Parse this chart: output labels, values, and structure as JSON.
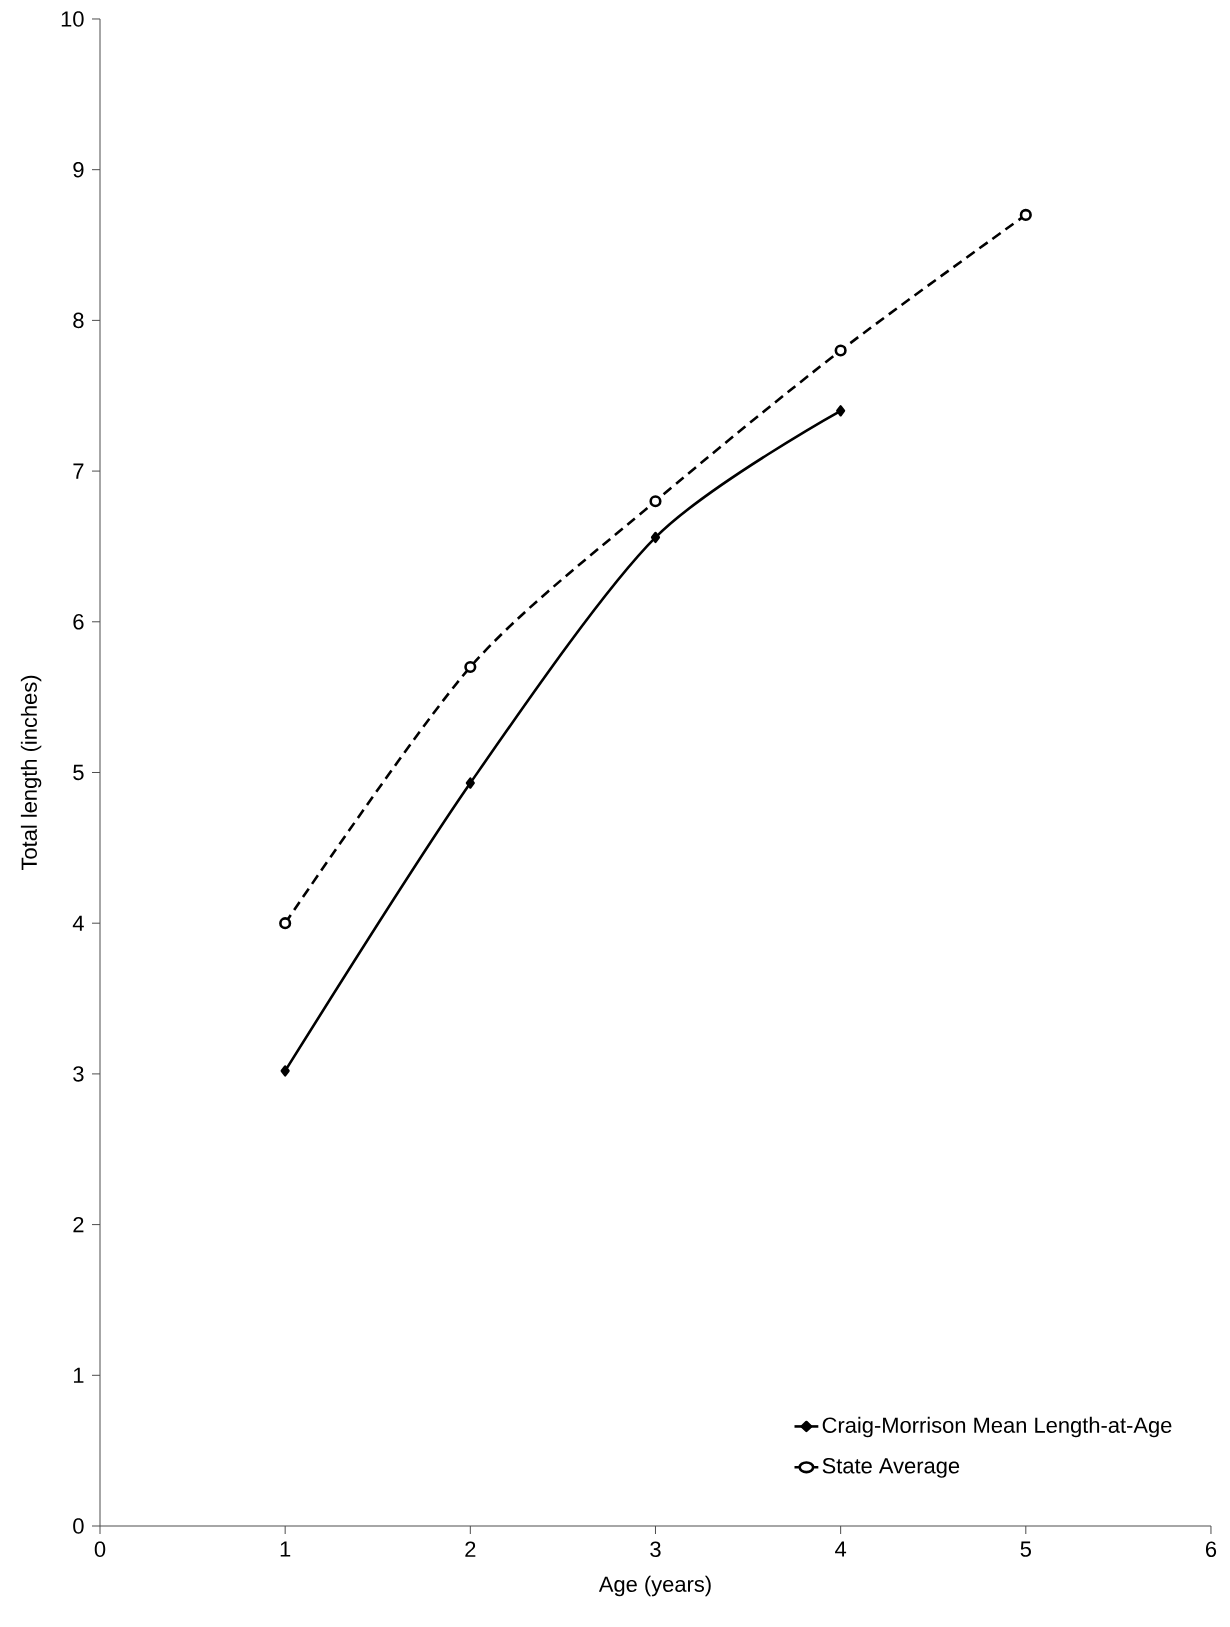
{
  "chart_data": {
    "type": "line",
    "xlabel": "Age (years)",
    "ylabel": "Total length (inches)",
    "xlim": [
      0,
      6
    ],
    "xticks": [
      0,
      1,
      2,
      3,
      4,
      5,
      6
    ],
    "ylim": [
      0,
      10
    ],
    "yticks": [
      0,
      1,
      2,
      3,
      4,
      5,
      6,
      7,
      8,
      9,
      10
    ],
    "grid": false,
    "legend": "bottom right",
    "series": [
      {
        "name": "Craig-Morrison Mean Length-at-Age",
        "color": "#000000",
        "x": [
          1,
          2,
          3,
          4
        ],
        "values": [
          3.02,
          4.93,
          6.56,
          7.4
        ],
        "marker": "diamond",
        "line_style": "solid"
      },
      {
        "name": "State Average",
        "color": "#000000",
        "x": [
          1,
          2,
          3,
          4,
          5
        ],
        "values": [
          4.0,
          5.7,
          6.8,
          7.8,
          8.7
        ],
        "marker": "circle",
        "line_style": "dashed"
      }
    ]
  }
}
